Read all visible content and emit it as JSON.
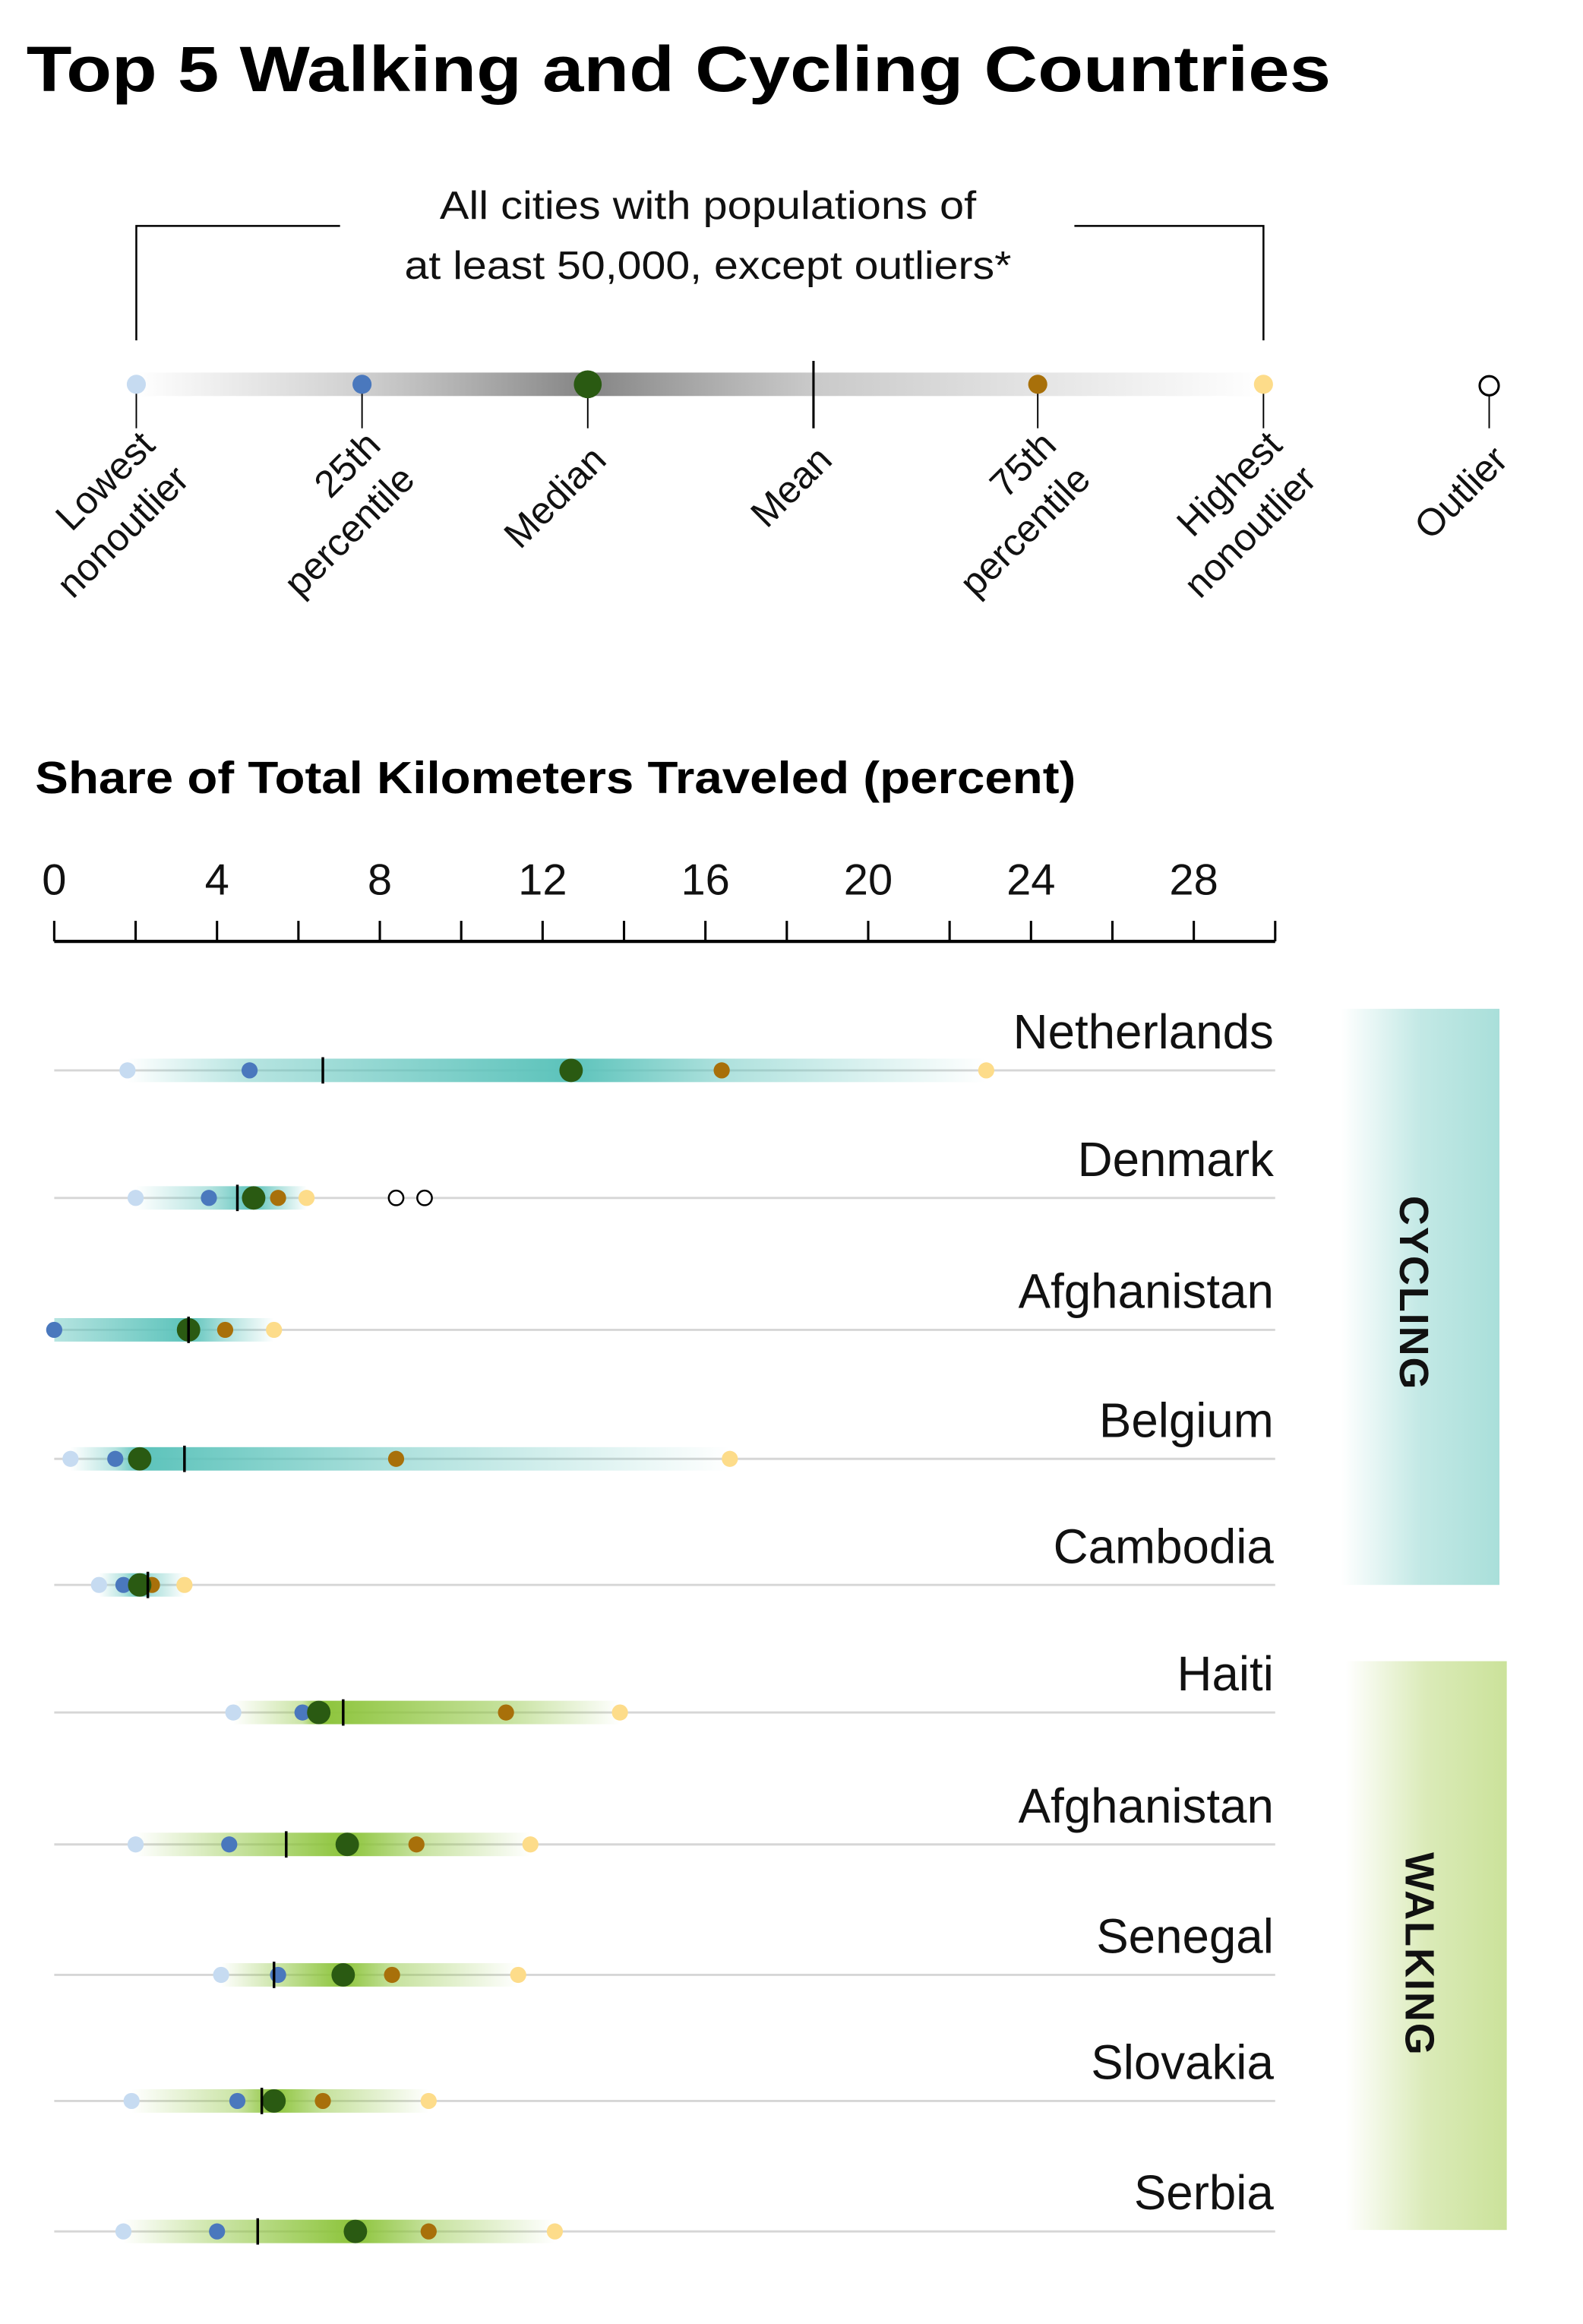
{
  "title": "Top 5 Walking and Cycling Countries",
  "legend": {
    "note_lines": [
      "All cities with populations of",
      "at least 50,000, except outliers*"
    ],
    "items": [
      {
        "key": "low",
        "lines": [
          "Lowest",
          "nonoutlier"
        ],
        "color": "#c6dbf1"
      },
      {
        "key": "q1",
        "lines": [
          "25th",
          "percentile"
        ],
        "color": "#4a78bd"
      },
      {
        "key": "median",
        "lines": [
          "Median"
        ],
        "color": "#2a5a12"
      },
      {
        "key": "mean",
        "lines": [
          "Mean"
        ],
        "color": "#000000"
      },
      {
        "key": "q3",
        "lines": [
          "75th",
          "percentile"
        ],
        "color": "#a8700a"
      },
      {
        "key": "high",
        "lines": [
          "Highest",
          "nonoutlier"
        ],
        "color": "#fddc8a"
      },
      {
        "key": "outlier",
        "lines": [
          "Outlier"
        ],
        "color": "#ffffff"
      }
    ]
  },
  "chart_data": {
    "type": "box-dot",
    "title": "Share of Total Kilometers Traveled (percent)",
    "xlim": [
      0,
      30
    ],
    "x_ticks": [
      0,
      4,
      8,
      12,
      16,
      20,
      24,
      28
    ],
    "minor_tick_step": 2,
    "groups": [
      {
        "label": "CYCLING",
        "color": "#5cc3bb",
        "band_color": "#a9dfda"
      },
      {
        "label": "WALKING",
        "color": "#8cc43a",
        "band_color": "#cbe29a"
      }
    ],
    "rows": [
      {
        "group": 0,
        "country": "Netherlands",
        "low": 1.8,
        "q1": 4.8,
        "median": 12.7,
        "mean": 6.6,
        "q3": 16.4,
        "high": 22.9,
        "outliers": []
      },
      {
        "group": 0,
        "country": "Denmark",
        "low": 2.0,
        "q1": 3.8,
        "median": 4.9,
        "mean": 4.5,
        "q3": 5.5,
        "high": 6.2,
        "outliers": [
          8.4,
          9.1
        ]
      },
      {
        "group": 0,
        "country": "Afghanistan",
        "low": 0,
        "q1": 0,
        "median": 3.3,
        "mean": 3.3,
        "q3": 4.2,
        "high": 5.4,
        "outliers": []
      },
      {
        "group": 0,
        "country": "Belgium",
        "low": 0.4,
        "q1": 1.5,
        "median": 2.1,
        "mean": 3.2,
        "q3": 8.4,
        "high": 16.6,
        "outliers": []
      },
      {
        "group": 0,
        "country": "Cambodia",
        "low": 1.1,
        "q1": 1.7,
        "median": 2.1,
        "mean": 2.3,
        "q3": 2.4,
        "high": 3.2,
        "outliers": []
      },
      {
        "group": 1,
        "country": "Haiti",
        "low": 4.4,
        "q1": 6.1,
        "median": 6.5,
        "mean": 7.1,
        "q3": 11.1,
        "high": 13.9,
        "outliers": []
      },
      {
        "group": 1,
        "country": "Afghanistan",
        "low": 2.0,
        "q1": 4.3,
        "median": 7.2,
        "mean": 5.7,
        "q3": 8.9,
        "high": 11.7,
        "outliers": []
      },
      {
        "group": 1,
        "country": "Senegal",
        "low": 4.1,
        "q1": 5.5,
        "median": 7.1,
        "mean": 5.4,
        "q3": 8.3,
        "high": 11.4,
        "outliers": []
      },
      {
        "group": 1,
        "country": "Slovakia",
        "low": 1.9,
        "q1": 4.5,
        "median": 5.4,
        "mean": 5.1,
        "q3": 6.6,
        "high": 9.2,
        "outliers": []
      },
      {
        "group": 1,
        "country": "Serbia",
        "low": 1.7,
        "q1": 4.0,
        "median": 7.4,
        "mean": 5.0,
        "q3": 9.2,
        "high": 12.3,
        "outliers": []
      }
    ]
  }
}
